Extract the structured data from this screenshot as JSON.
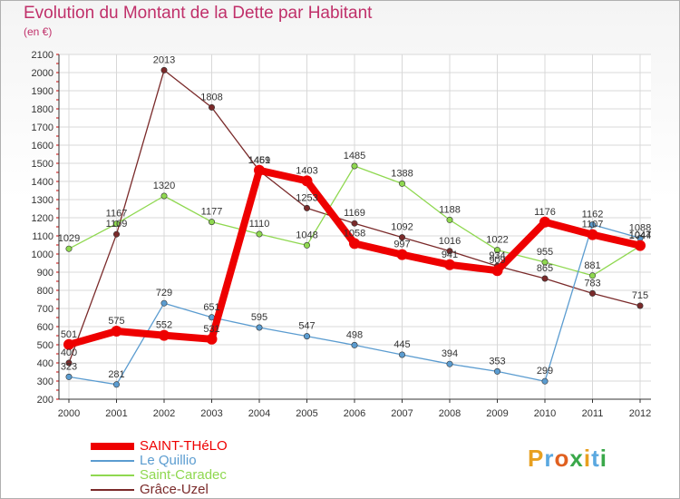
{
  "title": "Evolution du Montant de la Dette par Habitant",
  "subtitle": "(en €)",
  "logo": "Proxiti",
  "chart_data": {
    "type": "line",
    "title": "Evolution du Montant de la Dette par Habitant",
    "ylabel": "(en €)",
    "xlabel": "",
    "x": [
      2000,
      2001,
      2002,
      2003,
      2004,
      2005,
      2006,
      2007,
      2008,
      2009,
      2010,
      2011,
      2012
    ],
    "ylim": [
      200,
      2100
    ],
    "yticks": [
      200,
      300,
      400,
      500,
      600,
      700,
      800,
      900,
      1000,
      1100,
      1200,
      1300,
      1400,
      1500,
      1600,
      1700,
      1800,
      1900,
      2000,
      2100
    ],
    "grid": true,
    "legend": "bottom-left",
    "series": [
      {
        "name": "Grâce-Uzel",
        "color": "#7a2a2a",
        "values": [
          400,
          1109,
          2013,
          1808,
          1459,
          1253,
          1169,
          1092,
          1016,
          934,
          865,
          783,
          715
        ]
      },
      {
        "name": "Saint-Caradec",
        "color": "#8fd850",
        "values": [
          1029,
          1167,
          1320,
          1177,
          1110,
          1048,
          1485,
          1388,
          1188,
          1022,
          955,
          881,
          1044
        ]
      },
      {
        "name": "Le Quillio",
        "color": "#5b9cd0",
        "values": [
          323,
          281,
          729,
          651,
          595,
          547,
          498,
          445,
          394,
          353,
          299,
          1162,
          1088
        ]
      },
      {
        "name": "SAINT-THéLO",
        "color": "#ee0000",
        "values": [
          501,
          575,
          552,
          531,
          1461,
          1403,
          1058,
          997,
          941,
          909,
          1176,
          1107,
          1047
        ]
      }
    ]
  },
  "legend_items": [
    {
      "name": "SAINT-THéLO",
      "color": "#ee0000"
    },
    {
      "name": "Le Quillio",
      "color": "#5b9cd0"
    },
    {
      "name": "Saint-Caradec",
      "color": "#8fd850"
    },
    {
      "name": "Grâce-Uzel",
      "color": "#7a2a2a"
    }
  ]
}
